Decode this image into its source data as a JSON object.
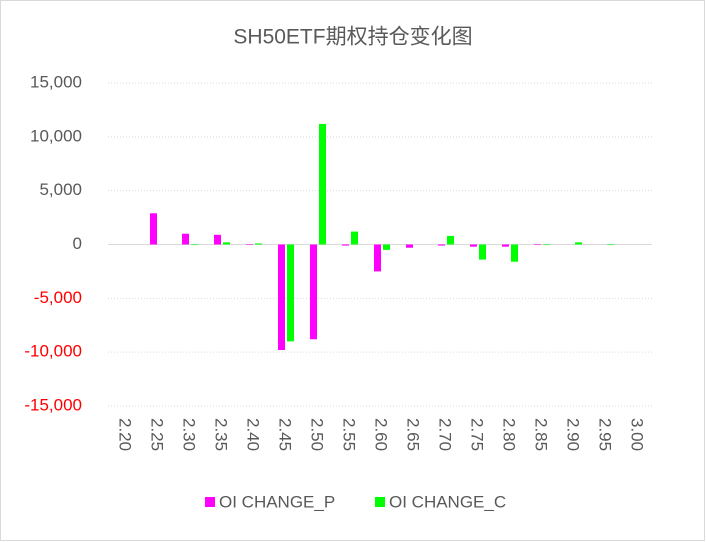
{
  "chart_data": {
    "type": "bar",
    "title": "SH50ETF期权持仓变化图",
    "categories": [
      "2.20",
      "2.25",
      "2.30",
      "2.35",
      "2.40",
      "2.45",
      "2.50",
      "2.55",
      "2.60",
      "2.65",
      "2.70",
      "2.75",
      "2.80",
      "2.85",
      "2.90",
      "2.95",
      "3.00"
    ],
    "series": [
      {
        "name": "OI CHANGE_P",
        "color": "#ff00ff",
        "values": [
          0,
          2900,
          1000,
          900,
          -50,
          -9800,
          -8800,
          -100,
          -2500,
          -300,
          -100,
          -200,
          -200,
          -50,
          0,
          0,
          0
        ]
      },
      {
        "name": "OI CHANGE_C",
        "color": "#00ff00",
        "values": [
          0,
          0,
          -50,
          200,
          100,
          -9000,
          11200,
          1200,
          -500,
          0,
          800,
          -1400,
          -1600,
          -50,
          200,
          -50,
          0
        ]
      }
    ],
    "ylim": [
      -15000,
      15000
    ],
    "yticks": [
      {
        "value": -15000,
        "label": "-15,000"
      },
      {
        "value": -10000,
        "label": "-10,000"
      },
      {
        "value": -5000,
        "label": "-5,000"
      },
      0,
      {
        "value": 5000,
        "label": "5,000"
      },
      {
        "value": 10000,
        "label": "10,000"
      },
      {
        "value": 15000,
        "label": "15,000"
      }
    ],
    "grid": true,
    "legend": "bottom"
  }
}
